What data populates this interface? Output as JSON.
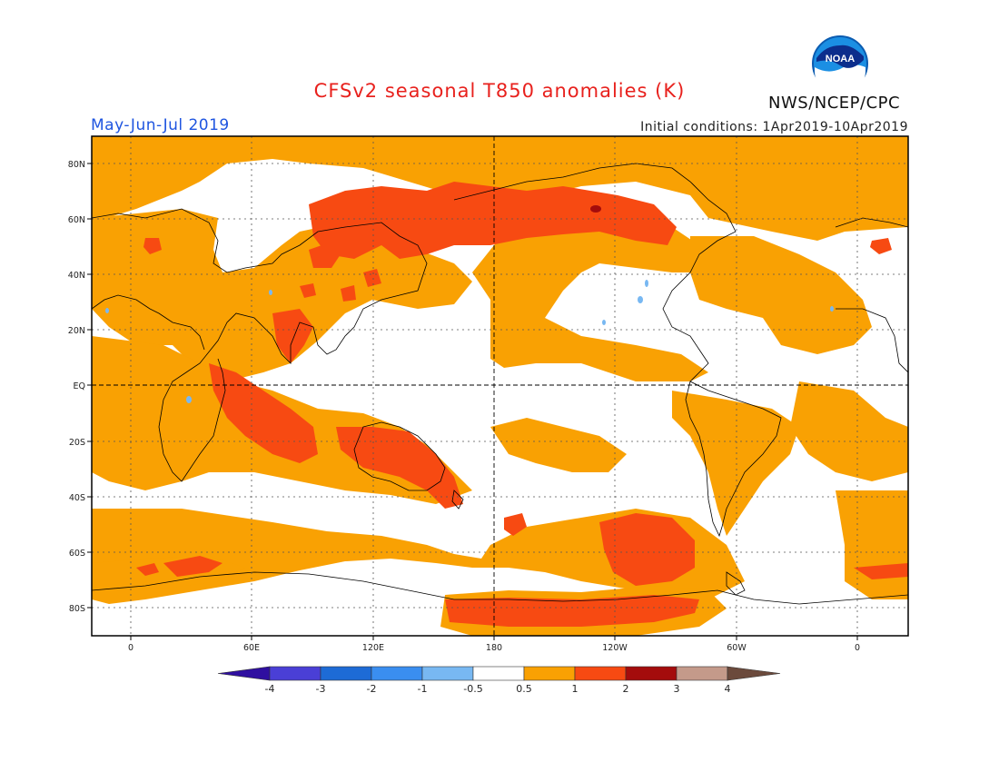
{
  "title": "CFSv2 seasonal T850 anomalies (K)",
  "period": "May-Jun-Jul 2019",
  "initial_conditions": "Initial conditions: 1Apr2019-10Apr2019",
  "agency": "NWS/NCEP/CPC",
  "logo_text": "NOAA",
  "lat_labels": [
    "80N",
    "60N",
    "40N",
    "20N",
    "EQ",
    "20S",
    "40S",
    "60S",
    "80S"
  ],
  "lon_labels": [
    "0",
    "60E",
    "120E",
    "180",
    "120W",
    "60W",
    "0"
  ],
  "colorbar": {
    "labels": [
      "-4",
      "-3",
      "-2",
      "-1",
      "-0.5",
      "0.5",
      "1",
      "2",
      "3",
      "4"
    ],
    "colors": [
      "#2f0fa0",
      "#4a3fd6",
      "#1d6bd6",
      "#3a8ef0",
      "#78b8f2",
      "#ffffff",
      "#f9a103",
      "#f74a12",
      "#a40c0c",
      "#c49a8a",
      "#6b4a3c"
    ]
  },
  "colors": {
    "land_coast": "#000000",
    "anomaly_0_5_to_1": "#f9a103",
    "anomaly_1_to_2": "#f74a12",
    "anomaly_2_to_3": "#a40c0c",
    "anomaly_neg": "#78b8f2"
  }
}
